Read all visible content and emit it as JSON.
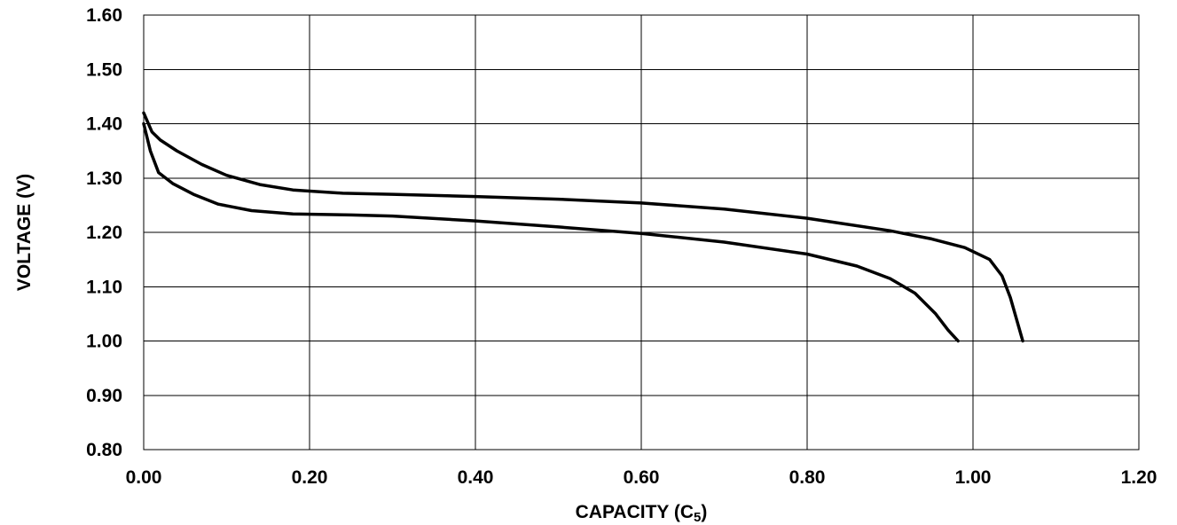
{
  "chart_data": {
    "type": "line",
    "title": "",
    "xlabel": "CAPACITY (C",
    "xlabel_subscript": "5",
    "xlabel_suffix": ")",
    "ylabel": "VOLTAGE (V)",
    "xlim": [
      0,
      1.2
    ],
    "ylim": [
      0.8,
      1.6
    ],
    "x_ticks": [
      "0.00",
      "0.20",
      "0.40",
      "0.60",
      "0.80",
      "1.00",
      "1.20"
    ],
    "y_ticks": [
      "1.60",
      "1.50",
      "1.40",
      "1.30",
      "1.20",
      "1.10",
      "1.00",
      "0.90",
      "0.80"
    ],
    "grid": true,
    "legend": "none",
    "series": [
      {
        "x": [
          0.0,
          0.01,
          0.02,
          0.04,
          0.07,
          0.1,
          0.14,
          0.18,
          0.24,
          0.3,
          0.4,
          0.5,
          0.6,
          0.7,
          0.8,
          0.9,
          0.95,
          0.99,
          1.02,
          1.035,
          1.045,
          1.06
        ],
        "y": [
          1.42,
          1.385,
          1.37,
          1.35,
          1.325,
          1.305,
          1.288,
          1.278,
          1.272,
          1.27,
          1.266,
          1.261,
          1.254,
          1.243,
          1.226,
          1.203,
          1.188,
          1.172,
          1.15,
          1.12,
          1.08,
          1.0
        ]
      },
      {
        "x": [
          0.0,
          0.008,
          0.018,
          0.035,
          0.06,
          0.09,
          0.13,
          0.18,
          0.25,
          0.3,
          0.4,
          0.5,
          0.6,
          0.7,
          0.8,
          0.86,
          0.9,
          0.93,
          0.955,
          0.97,
          0.982
        ],
        "y": [
          1.4,
          1.35,
          1.31,
          1.29,
          1.27,
          1.252,
          1.24,
          1.234,
          1.232,
          1.23,
          1.221,
          1.21,
          1.198,
          1.182,
          1.16,
          1.138,
          1.115,
          1.088,
          1.05,
          1.02,
          1.0
        ]
      }
    ]
  }
}
